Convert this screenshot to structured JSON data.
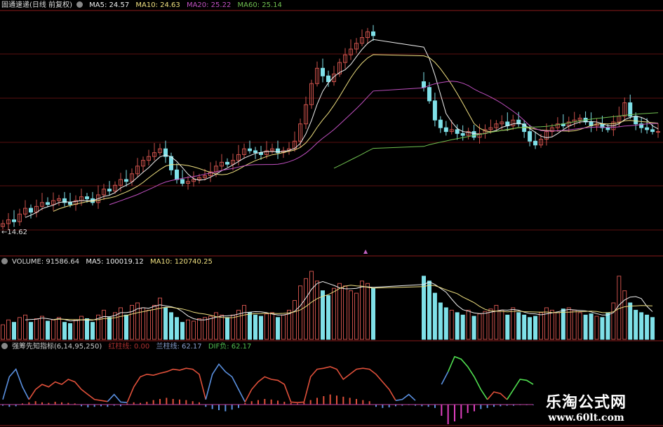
{
  "main_header": {
    "title": "固通速递(日线 前复权)",
    "ma5": "MA5: 24.57",
    "ma10": "MA10: 24.63",
    "ma20": "MA20: 25.22",
    "ma60": "MA60: 25.14"
  },
  "volume_header": {
    "volume": "VOLUME: 91586.64",
    "ma5": "MA5: 100019.12",
    "ma10": "MA10: 120740.25"
  },
  "indicator_header": {
    "name": "强筹先知指标(6,14,95,250)",
    "red": "红柱线: 0.00",
    "blue": "兰柱线: 62.17",
    "dif": "DIF负: 62.17"
  },
  "low_label": "←14.62",
  "watermark": {
    "title": "乐淘公式网",
    "url": "www.60lt.com"
  },
  "colors": {
    "up": "#c8504a",
    "down": "#7fe0e8",
    "ma5": "#f0f0f0",
    "ma10": "#f0e080",
    "ma20": "#c050c0",
    "ma60": "#70c050",
    "grid": "#5a1010",
    "ind_red": "#e0503a",
    "ind_blue": "#5a90e0",
    "ind_green": "#50e050",
    "ind_pink": "#e040c0"
  },
  "chart_data": [
    {
      "type": "candlestick",
      "title": "固通速递(日线 前复权)",
      "ylim": [
        12,
        37
      ],
      "annotations": [
        "14.62"
      ],
      "segments": [
        {
          "closes": [
            15.0,
            15.4,
            15.2,
            16.0,
            16.6,
            16.2,
            16.8,
            17.2,
            17.0,
            17.4,
            17.6,
            17.2,
            17.0,
            17.4,
            17.8,
            17.6,
            17.2,
            18.0,
            18.6,
            18.4,
            19.0,
            19.6,
            19.4,
            20.2,
            21.0,
            21.6,
            22.0,
            22.4,
            22.8,
            22.0,
            20.6,
            19.6,
            19.2,
            19.4,
            19.6,
            19.8,
            20.0,
            20.4,
            21.0,
            21.4,
            21.2,
            21.6,
            22.2,
            22.8,
            22.6,
            22.4,
            22.2,
            22.6,
            22.8,
            22.4,
            22.6,
            22.8,
            23.6,
            25.4,
            27.4,
            29.6,
            31.2,
            30.4,
            29.8,
            30.6,
            31.8,
            32.6,
            33.2,
            33.8,
            34.4,
            35.0,
            34.6
          ]
        },
        {
          "closes": [
            29.2,
            27.8,
            25.8,
            25.0,
            24.6,
            24.8,
            24.4,
            24.2,
            24.6,
            24.0,
            24.4,
            24.8,
            25.0,
            25.4,
            25.6,
            25.2,
            25.8,
            25.4,
            24.6,
            23.6,
            23.2,
            23.8,
            24.6,
            25.0,
            25.4,
            25.2,
            25.6,
            25.8,
            26.0,
            25.6,
            25.2,
            25.4,
            25.0,
            24.8,
            25.6,
            26.2,
            27.6,
            26.2,
            25.4,
            25.0,
            24.8,
            24.6,
            24.6
          ]
        }
      ],
      "series": [
        {
          "name": "MA5",
          "period": 5
        },
        {
          "name": "MA10",
          "period": 10
        },
        {
          "name": "MA20",
          "period": 20
        },
        {
          "name": "MA60",
          "period": 60
        }
      ]
    },
    {
      "type": "bar",
      "title": "VOLUME",
      "ylim": [
        0,
        300000
      ],
      "values": [
        60,
        80,
        70,
        90,
        100,
        70,
        85,
        95,
        75,
        80,
        90,
        70,
        65,
        80,
        95,
        85,
        70,
        100,
        120,
        90,
        110,
        130,
        100,
        140,
        150,
        130,
        120,
        140,
        170,
        130,
        110,
        90,
        70,
        80,
        75,
        85,
        90,
        95,
        110,
        100,
        90,
        100,
        120,
        140,
        110,
        100,
        95,
        105,
        110,
        90,
        100,
        120,
        160,
        220,
        250,
        280,
        240,
        200,
        180,
        210,
        230,
        220,
        200,
        190,
        240,
        230,
        210,
        260,
        240,
        190,
        150,
        130,
        120,
        110,
        100,
        120,
        95,
        105,
        115,
        125,
        140,
        120,
        100,
        130,
        110,
        100,
        90,
        95,
        110,
        130,
        120,
        110,
        125,
        130,
        120,
        110,
        100,
        105,
        95,
        90,
        110,
        150,
        260,
        200,
        150,
        120,
        110,
        100,
        90
      ],
      "unit_scale": 1000
    },
    {
      "type": "line",
      "title": "强筹先知指标(6,14,95,250)",
      "ylim": [
        0,
        100
      ],
      "lines": [
        {
          "color": "ind_blue",
          "start": 0,
          "values": [
            10,
            55,
            70,
            35,
            10
          ]
        },
        {
          "color": "ind_red",
          "start": 4,
          "values": [
            10,
            30,
            40,
            35,
            45,
            40,
            50,
            45,
            30,
            20,
            10,
            8,
            6
          ]
        },
        {
          "color": "ind_blue",
          "start": 16,
          "values": [
            6,
            20,
            5,
            4
          ]
        },
        {
          "color": "ind_red",
          "start": 19,
          "values": [
            4,
            35,
            55,
            60,
            58,
            62,
            65,
            70,
            68,
            72,
            70,
            60,
            10
          ]
        },
        {
          "color": "ind_blue",
          "start": 31,
          "values": [
            10,
            60,
            80,
            65,
            55,
            30,
            5
          ]
        },
        {
          "color": "ind_red",
          "start": 37,
          "values": [
            5,
            30,
            45,
            55,
            50,
            48,
            40,
            5,
            4,
            5
          ]
        },
        {
          "color": "ind_red",
          "start": 46,
          "values": [
            5,
            55,
            70,
            72,
            75,
            70,
            50,
            60,
            70,
            72,
            70,
            60,
            45,
            30,
            8
          ]
        },
        {
          "color": "ind_blue",
          "start": 60,
          "values": [
            8,
            10,
            20,
            8
          ]
        },
        {
          "color": "ind_blue",
          "start": 67,
          "values": [
            40,
            65
          ]
        },
        {
          "color": "ind_green",
          "start": 68,
          "values": [
            65,
            95,
            90,
            75,
            55,
            30,
            10
          ]
        },
        {
          "color": "ind_red",
          "start": 74,
          "values": [
            10,
            25,
            22,
            10
          ]
        },
        {
          "color": "ind_green",
          "start": 77,
          "values": [
            10,
            30,
            50,
            48,
            40
          ]
        }
      ],
      "hist": [
        -2,
        -4,
        -3,
        2,
        4,
        6,
        4,
        3,
        5,
        4,
        3,
        2,
        -3,
        -5,
        -4,
        -3,
        -4,
        -2,
        -3,
        2,
        4,
        3,
        5,
        8,
        10,
        12,
        10,
        9,
        8,
        6,
        4,
        -4,
        -8,
        -10,
        -12,
        -9,
        -6,
        3,
        6,
        8,
        10,
        9,
        7,
        5,
        3,
        2,
        4,
        8,
        12,
        15,
        18,
        16,
        14,
        12,
        10,
        8,
        6,
        -4,
        -6,
        -5,
        -3,
        -2,
        -1,
        -2,
        -3,
        -4,
        -6,
        -20,
        -35,
        -30,
        -25,
        -15,
        -12,
        -8,
        -6,
        -4,
        -3,
        -2,
        -2,
        -1,
        -1,
        -1
      ]
    }
  ]
}
